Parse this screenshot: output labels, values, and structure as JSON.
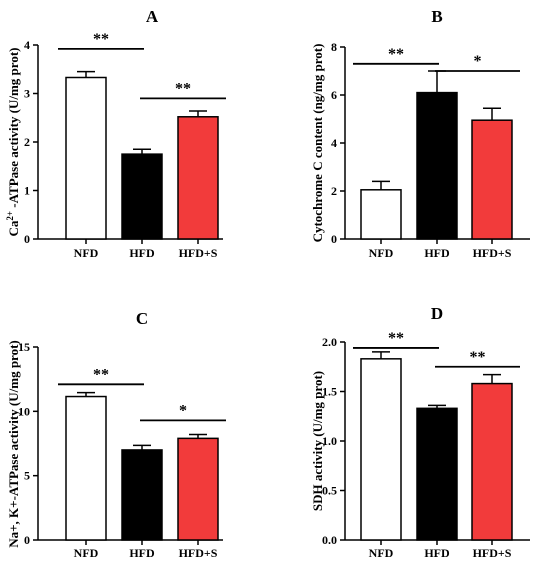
{
  "colors": {
    "NFD": "#ffffff",
    "HFD": "#000000",
    "HFD+S": "#f23b3b",
    "stroke": "#000000"
  },
  "chart_data": [
    {
      "type": "bar",
      "title": "A",
      "ylabel_main": "Ca",
      "ylabel_sup": "2+",
      "ylabel_rest": " -ATPase activity (U/mg prot)",
      "categories": [
        "NFD",
        "HFD",
        "HFD+S"
      ],
      "values": [
        3.33,
        1.75,
        2.52
      ],
      "errors": [
        0.12,
        0.1,
        0.12
      ],
      "ylim": [
        0,
        4
      ],
      "yticks": [
        "0",
        "1",
        "2",
        "3",
        "4"
      ],
      "ytick_values": [
        0,
        1,
        2,
        3,
        4
      ],
      "significance": [
        {
          "from": 0,
          "to": 1,
          "label": "**",
          "y": 3.92
        },
        {
          "from": 1,
          "to": 2,
          "label": "**",
          "y": 2.9
        }
      ]
    },
    {
      "type": "bar",
      "title": "B",
      "ylabel": "Cytochrome C content (ng/mg prot)",
      "categories": [
        "NFD",
        "HFD",
        "HFD+S"
      ],
      "values": [
        2.05,
        6.1,
        4.95
      ],
      "errors": [
        0.35,
        0.9,
        0.5
      ],
      "ylim": [
        0,
        8
      ],
      "yticks": [
        "0",
        "2",
        "4",
        "6",
        "8"
      ],
      "ytick_values": [
        0,
        2,
        4,
        6,
        8
      ],
      "significance": [
        {
          "from": 0,
          "to": 1,
          "label": "**",
          "y": 7.3
        },
        {
          "from": 1,
          "to": 2,
          "label": "*",
          "y": 7.0
        }
      ]
    },
    {
      "type": "bar",
      "title": "C",
      "ylabel": "Na+, K+-ATPase activity (U/mg prot)",
      "categories": [
        "NFD",
        "HFD",
        "HFD+S"
      ],
      "values": [
        11.15,
        7.0,
        7.9
      ],
      "errors": [
        0.3,
        0.35,
        0.3
      ],
      "ylim": [
        0,
        15
      ],
      "yticks": [
        "0",
        "5",
        "10",
        "15"
      ],
      "ytick_values": [
        0,
        5,
        10,
        15
      ],
      "significance": [
        {
          "from": 0,
          "to": 1,
          "label": "**",
          "y": 12.1
        },
        {
          "from": 1,
          "to": 2,
          "label": "*",
          "y": 9.3
        }
      ]
    },
    {
      "type": "bar",
      "title": "D",
      "ylabel": "SDH activity (U/mg prot)",
      "categories": [
        "NFD",
        "HFD",
        "HFD+S"
      ],
      "values": [
        1.83,
        1.33,
        1.58
      ],
      "errors": [
        0.07,
        0.03,
        0.09
      ],
      "ylim": [
        0,
        2.0
      ],
      "yticks": [
        "0.0",
        "0.5",
        "1.0",
        "1.5",
        "2.0"
      ],
      "ytick_values": [
        0,
        0.5,
        1.0,
        1.5,
        2.0
      ],
      "significance": [
        {
          "from": 0,
          "to": 1,
          "label": "**",
          "y": 1.94
        },
        {
          "from": 1,
          "to": 2,
          "label": "**",
          "y": 1.75
        }
      ]
    }
  ]
}
